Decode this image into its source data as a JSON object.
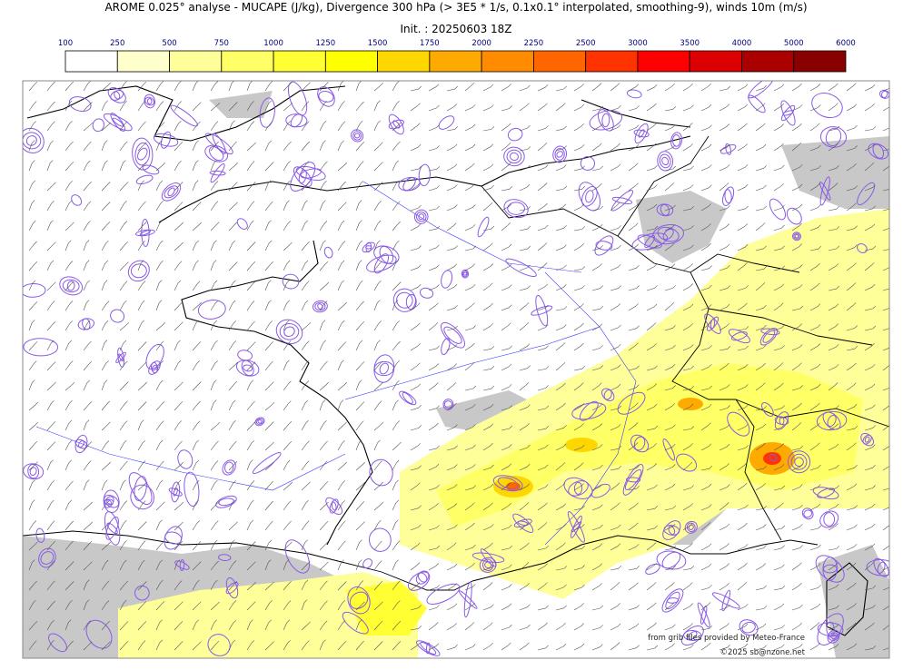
{
  "header": {
    "title": "AROME 0.025° analyse - MUCAPE (J/kg), Divergence 300 hPa (> 3E5 * 1/s, 0.1x0.1° interpolated, smoothing-9), winds 10m (m/s)",
    "init": "Init. : 20250603 18Z"
  },
  "colorbar": {
    "ticks": [
      100,
      250,
      500,
      750,
      1000,
      1250,
      1500,
      1750,
      2000,
      2250,
      2500,
      3000,
      3500,
      4000,
      5000,
      6000
    ],
    "colors": [
      "#ffffff",
      "#ffffcc",
      "#ffff99",
      "#ffff66",
      "#ffff33",
      "#ffff00",
      "#ffd700",
      "#ffaa00",
      "#ff8c00",
      "#ff6600",
      "#ff3300",
      "#ff0000",
      "#dd0000",
      "#aa0000",
      "#880000",
      "#5a0000"
    ]
  },
  "credits": {
    "source": "from grib files provided by Meteo-France",
    "copyright": "©2025 sb@nzone.net"
  }
}
